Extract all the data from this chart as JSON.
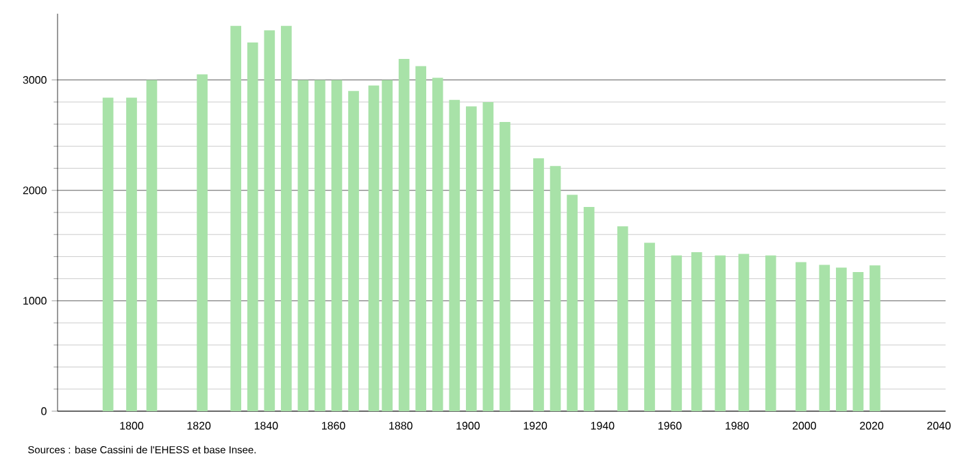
{
  "chart_data": {
    "type": "bar",
    "color": "#a8e2a8",
    "x": [
      1793,
      1800,
      1806,
      1821,
      1831,
      1836,
      1841,
      1846,
      1851,
      1856,
      1861,
      1866,
      1872,
      1876,
      1881,
      1886,
      1891,
      1896,
      1901,
      1906,
      1911,
      1921,
      1926,
      1931,
      1936,
      1946,
      1954,
      1962,
      1968,
      1975,
      1982,
      1990,
      1999,
      2006,
      2011,
      2016,
      2021
    ],
    "values": [
      2840,
      2840,
      3000,
      3050,
      3490,
      3340,
      3450,
      3490,
      3000,
      3000,
      3000,
      2900,
      2950,
      3000,
      3190,
      3125,
      3020,
      2820,
      2760,
      2800,
      2620,
      2290,
      2220,
      1960,
      1850,
      1675,
      1525,
      1410,
      1440,
      1410,
      1425,
      1410,
      1350,
      1325,
      1300,
      1260,
      1320
    ],
    "xlim": [
      1778,
      2042
    ],
    "ylim": [
      0,
      3600
    ],
    "xticks": [
      1800,
      1820,
      1840,
      1860,
      1880,
      1900,
      1920,
      1940,
      1960,
      1980,
      2000,
      2020,
      2040
    ],
    "yticks": [
      0,
      1000,
      2000,
      3000
    ],
    "grid": "y",
    "annotations": [
      "Sources : base Cassini de l'EHESS et base Insee."
    ]
  }
}
